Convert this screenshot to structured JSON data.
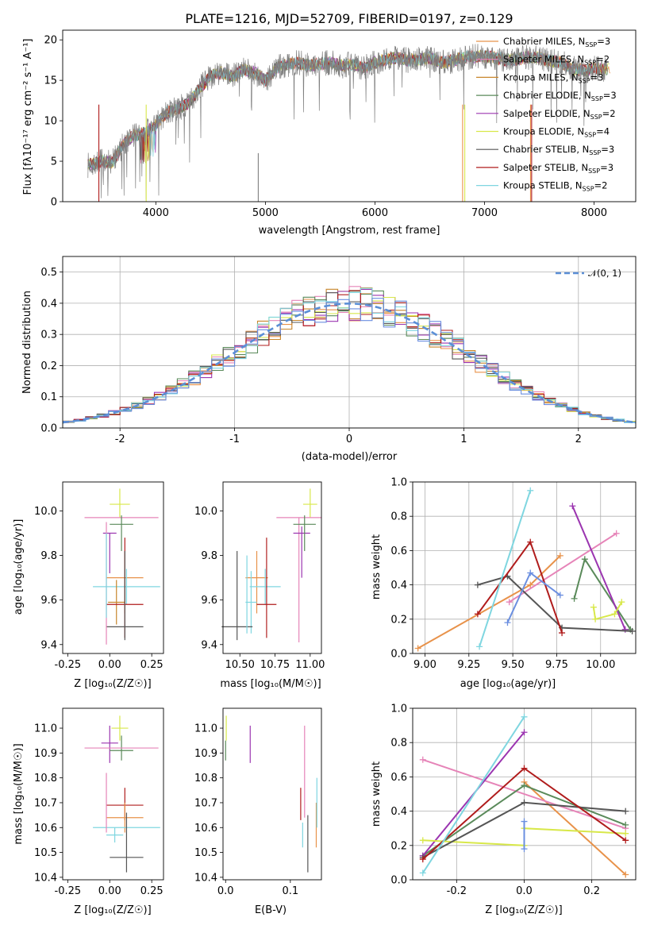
{
  "title": "PLATE=1216, MJD=52709, FIBERID=0197, z=0.129",
  "colors": {
    "Chabrier MILES": "#e8924a",
    "Salpeter MILES": "#e684b8",
    "Kroupa MILES": "#c8862c",
    "Chabrier ELODIE": "#5a8a5a",
    "Salpeter ELODIE": "#9b35b0",
    "Kroupa ELODIE": "#d8e84a",
    "Chabrier STELIB": "#555555",
    "Salpeter STELIB": "#b01c1c",
    "Kroupa STELIB": "#7fd6e0",
    "Model blue": "#6b8fe0",
    "Normal": "#5b8fd6"
  },
  "panels": {
    "spectrum": {
      "xlabel": "wavelength [Angstrom, rest frame]",
      "ylabel": "Flux [f$\\lambda$10$^{-17}$ erg cm$^{-2}$ s$^{-1}$ A$^{-1}$]",
      "ylabel_display": "Flux [fλ10⁻¹⁷ erg cm⁻² s⁻¹ A⁻¹]",
      "xticks": [
        4000,
        5000,
        6000,
        7000,
        8000
      ],
      "yticks": [
        0,
        5,
        10,
        15,
        20
      ],
      "legend": [
        {
          "name": "Chabrier MILES, N_SSP=3",
          "label": "Chabrier MILES, N",
          "sub": "SSP",
          "tail": "=3",
          "color": "#e8924a"
        },
        {
          "name": "Salpeter MILES, N_SSP=2",
          "label": "Salpeter MILES, N",
          "sub": "SSP",
          "tail": "=2",
          "color": "#e684b8"
        },
        {
          "name": "Kroupa MILES, N_SSP=3",
          "label": "Kroupa MILES, N",
          "sub": "SSP",
          "tail": "=3",
          "color": "#c8862c"
        },
        {
          "name": "Chabrier ELODIE, N_SSP=3",
          "label": "Chabrier ELODIE, N",
          "sub": "SSP",
          "tail": "=3",
          "color": "#5a8a5a"
        },
        {
          "name": "Salpeter ELODIE, N_SSP=2",
          "label": "Salpeter ELODIE, N",
          "sub": "SSP",
          "tail": "=2",
          "color": "#9b35b0"
        },
        {
          "name": "Kroupa ELODIE, N_SSP=4",
          "label": "Kroupa ELODIE, N",
          "sub": "SSP",
          "tail": "=4",
          "color": "#d8e84a"
        },
        {
          "name": "Chabrier STELIB, N_SSP=3",
          "label": "Chabrier STELIB, N",
          "sub": "SSP",
          "tail": "=3",
          "color": "#555555"
        },
        {
          "name": "Salpeter STELIB, N_SSP=3",
          "label": "Salpeter STELIB, N",
          "sub": "SSP",
          "tail": "=3",
          "color": "#b01c1c"
        },
        {
          "name": "Kroupa STELIB, N_SSP=2",
          "label": "Kroupa STELIB, N",
          "sub": "SSP",
          "tail": "=2",
          "color": "#7fd6e0"
        }
      ]
    },
    "residuals": {
      "xlabel": "(data-model)/error",
      "ylabel": "Normed distribution",
      "legend_label": "𝒩(0, 1)",
      "xticks": [
        -2,
        -1,
        0,
        1,
        2
      ],
      "yticks": [
        0.0,
        0.1,
        0.2,
        0.3,
        0.4,
        0.5
      ]
    },
    "age_vs_Z": {
      "xlabel": "Z [log₁₀(Z/Z☉)]",
      "ylabel": "age  [log₁₀(age/yr)]",
      "xticks": [
        -0.25,
        0.0,
        0.25
      ],
      "yticks": [
        9.4,
        9.6,
        9.8,
        10.0
      ]
    },
    "age_vs_mass": {
      "xlabel": "mass [log₁₀(M/M☉)]",
      "xticks": [
        10.5,
        10.75,
        11.0
      ],
      "yticks": [
        9.4,
        9.6,
        9.8,
        10.0
      ]
    },
    "weight_vs_age": {
      "xlabel": "age  [log₁₀(age/yr)]",
      "ylabel": "mass weight",
      "xticks": [
        9.0,
        9.25,
        9.5,
        9.75,
        10.0
      ],
      "yticks": [
        0.0,
        0.2,
        0.4,
        0.6,
        0.8,
        1.0
      ]
    },
    "mass_vs_Z": {
      "xlabel": "Z [log₁₀(Z/Z☉)]",
      "ylabel": "mass [log₁₀(M/M☉)]",
      "xticks": [
        -0.25,
        0.0,
        0.25
      ],
      "yticks": [
        10.4,
        10.5,
        10.6,
        10.7,
        10.8,
        10.9,
        11.0
      ]
    },
    "mass_vs_ebv": {
      "xlabel": "E(B-V)",
      "xticks": [
        0.0,
        0.1
      ],
      "yticks": [
        10.4,
        10.5,
        10.6,
        10.7,
        10.8,
        10.9,
        11.0
      ]
    },
    "weight_vs_Z": {
      "xlabel": "Z [log₁₀(Z/Z☉)]",
      "ylabel": "mass weight",
      "xticks": [
        -0.2,
        0.0,
        0.2
      ],
      "yticks": [
        0.0,
        0.2,
        0.4,
        0.6,
        0.8,
        1.0
      ]
    }
  },
  "chart_data": [
    {
      "type": "line",
      "title": "PLATE=1216, MJD=52709, FIBERID=0197, z=0.129",
      "xlabel": "wavelength [Angstrom, rest frame]",
      "ylabel": "Flux [fλ10⁻¹⁷ erg cm⁻² s⁻¹ A⁻¹]",
      "xlim": [
        3150,
        8380
      ],
      "ylim": [
        0,
        21.2
      ],
      "series": [
        {
          "name": "data",
          "color": "#808080",
          "x": [
            3380,
            3500,
            3600,
            3700,
            3800,
            3900,
            4000,
            4100,
            4200,
            4300,
            4400,
            4500,
            4600,
            4700,
            4800,
            4900,
            5000,
            5100,
            5200,
            5300,
            5400,
            5500,
            5600,
            5700,
            5800,
            5900,
            6000,
            6100,
            6200,
            6300,
            6400,
            6500,
            6600,
            6700,
            6800,
            6900,
            7000,
            7100,
            7200,
            7300,
            7400,
            7500,
            7600,
            7700,
            7800,
            7900,
            8000,
            8100
          ],
          "y": [
            4.5,
            5.0,
            4.8,
            7.0,
            8.2,
            8.5,
            9.5,
            11.0,
            11.5,
            12.2,
            14.0,
            15.5,
            16.0,
            15.5,
            16.3,
            16.0,
            15.0,
            16.5,
            17.0,
            17.2,
            16.8,
            17.0,
            17.2,
            16.8,
            17.0,
            16.5,
            17.2,
            17.6,
            17.8,
            17.5,
            17.6,
            17.8,
            17.2,
            17.4,
            17.8,
            17.9,
            18.0,
            17.8,
            17.5,
            17.6,
            17.9,
            17.8,
            17.4,
            17.2,
            16.5,
            16.2,
            16.5,
            16.3
          ]
        }
      ]
    },
    {
      "type": "line",
      "xlabel": "(data-model)/error",
      "ylabel": "Normed distribution",
      "xlim": [
        -2.5,
        2.5
      ],
      "ylim": [
        0,
        0.55
      ],
      "series": [
        {
          "name": "𝒩(0, 1)",
          "color": "#5b8fd6",
          "style": "dashed",
          "x": [
            -2.5,
            -2.0,
            -1.5,
            -1.0,
            -0.5,
            0.0,
            0.5,
            1.0,
            1.5,
            2.0,
            2.5
          ],
          "y": [
            0.018,
            0.054,
            0.13,
            0.242,
            0.352,
            0.399,
            0.352,
            0.242,
            0.13,
            0.054,
            0.018
          ]
        }
      ]
    },
    {
      "type": "scatter",
      "xlabel": "age  [log₁₀(age/yr)]",
      "ylabel": "mass weight",
      "xlim": [
        8.93,
        10.2
      ],
      "ylim": [
        0,
        1
      ],
      "series": [
        {
          "name": "Chabrier MILES",
          "color": "#e8924a",
          "x": [
            8.96,
            9.6,
            9.77
          ],
          "y": [
            0.03,
            0.4,
            0.57
          ]
        },
        {
          "name": "Salpeter MILES",
          "color": "#e684b8",
          "x": [
            9.48,
            10.09
          ],
          "y": [
            0.3,
            0.7
          ]
        },
        {
          "name": "Chabrier ELODIE",
          "color": "#5a8a5a",
          "x": [
            9.85,
            9.91,
            10.17
          ],
          "y": [
            0.32,
            0.55,
            0.14
          ]
        },
        {
          "name": "Salpeter ELODIE",
          "color": "#9b35b0",
          "x": [
            9.84,
            10.14
          ],
          "y": [
            0.86,
            0.14
          ]
        },
        {
          "name": "Kroupa ELODIE",
          "color": "#d8e84a",
          "x": [
            9.96,
            9.97,
            10.08,
            10.12
          ],
          "y": [
            0.27,
            0.2,
            0.23,
            0.3
          ]
        },
        {
          "name": "Chabrier STELIB",
          "color": "#555555",
          "x": [
            9.3,
            9.47,
            9.78,
            10.18
          ],
          "y": [
            0.4,
            0.45,
            0.15,
            0.13
          ]
        },
        {
          "name": "Salpeter STELIB",
          "color": "#b01c1c",
          "x": [
            9.3,
            9.6,
            9.78
          ],
          "y": [
            0.23,
            0.65,
            0.12
          ]
        },
        {
          "name": "Kroupa STELIB",
          "color": "#7fd6e0",
          "x": [
            9.31,
            9.6
          ],
          "y": [
            0.04,
            0.95
          ]
        },
        {
          "name": "blue model",
          "color": "#6b8fe0",
          "x": [
            9.47,
            9.6,
            9.77
          ],
          "y": [
            0.18,
            0.47,
            0.34
          ]
        }
      ]
    },
    {
      "type": "scatter",
      "xlabel": "Z [log₁₀(Z/Z☉)]",
      "ylabel": "mass weight",
      "xlim": [
        -0.33,
        0.33
      ],
      "ylim": [
        0,
        1
      ],
      "series": [
        {
          "name": "Chabrier MILES",
          "color": "#e8924a",
          "x": [
            0.0,
            0.3
          ],
          "y": [
            0.57,
            0.03
          ]
        },
        {
          "name": "Salpeter MILES",
          "color": "#e684b8",
          "x": [
            -0.3,
            0.3
          ],
          "y": [
            0.7,
            0.3
          ]
        },
        {
          "name": "Chabrier ELODIE",
          "color": "#5a8a5a",
          "x": [
            -0.3,
            0.0,
            0.3
          ],
          "y": [
            0.14,
            0.55,
            0.32
          ]
        },
        {
          "name": "Salpeter ELODIE",
          "color": "#9b35b0",
          "x": [
            -0.3,
            0.0
          ],
          "y": [
            0.14,
            0.86
          ]
        },
        {
          "name": "Kroupa ELODIE",
          "color": "#d8e84a",
          "x": [
            -0.3,
            0.0,
            0.0,
            0.3
          ],
          "y": [
            0.23,
            0.2,
            0.3,
            0.27
          ]
        },
        {
          "name": "Chabrier STELIB",
          "color": "#555555",
          "x": [
            -0.3,
            0.0,
            0.3
          ],
          "y": [
            0.13,
            0.45,
            0.4
          ]
        },
        {
          "name": "Salpeter STELIB",
          "color": "#b01c1c",
          "x": [
            -0.3,
            0.0,
            0.3
          ],
          "y": [
            0.12,
            0.65,
            0.23
          ]
        },
        {
          "name": "Kroupa STELIB",
          "color": "#7fd6e0",
          "x": [
            -0.3,
            0.0
          ],
          "y": [
            0.04,
            0.95
          ]
        },
        {
          "name": "blue model",
          "color": "#6b8fe0",
          "x": [
            0.0,
            0.0
          ],
          "y": [
            0.18,
            0.34
          ]
        }
      ]
    }
  ]
}
